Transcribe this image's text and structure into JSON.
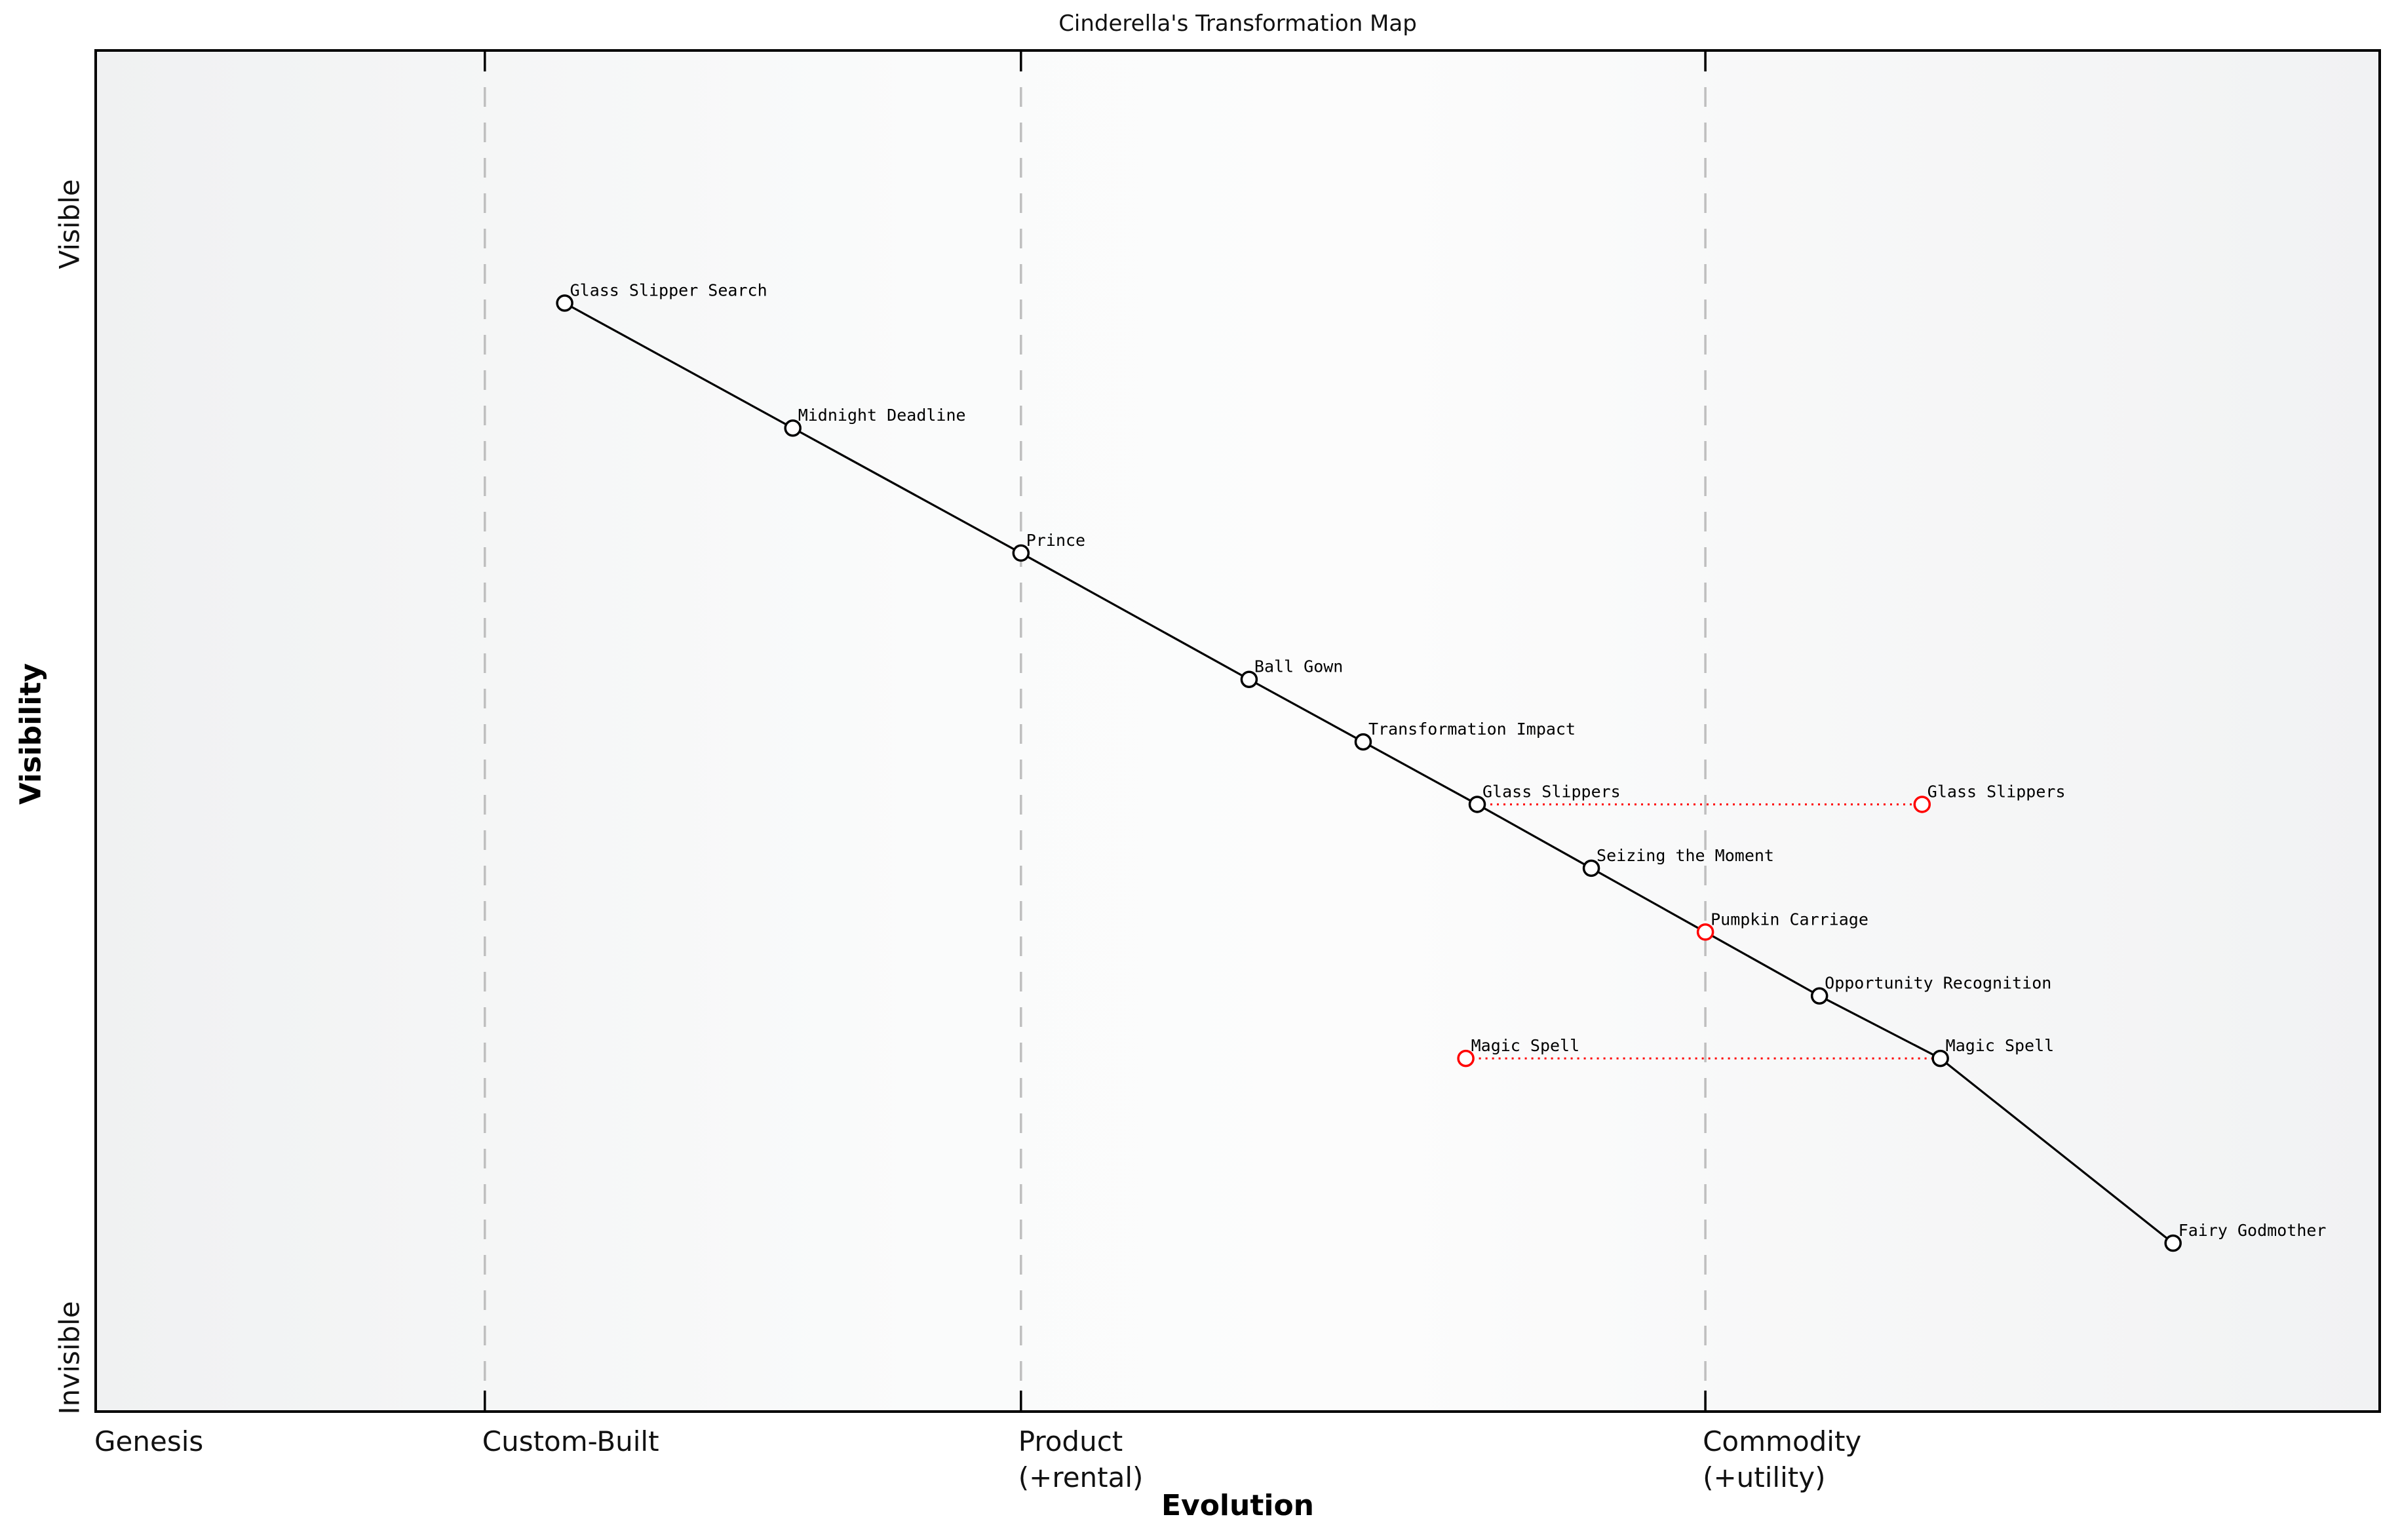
{
  "chart_data": {
    "type": "scatter",
    "subtype": "wardley-map",
    "title": "Cinderella's Transformation Map",
    "xlabel": "Evolution",
    "ylabel": "Visibility",
    "xlim": [
      0,
      1
    ],
    "ylim": [
      0,
      1
    ],
    "grid": "vertical-stage-boundaries-dashed",
    "legend": "none",
    "x_ticks": [
      {
        "label": "Genesis",
        "x": 0.0
      },
      {
        "label": "Custom-Built",
        "x": 0.17
      },
      {
        "label": "Product\n(+rental)",
        "x": 0.405
      },
      {
        "label": "Commodity\n(+utility)",
        "x": 0.705
      }
    ],
    "y_ticks": [
      {
        "label": "Invisible",
        "y": 0.0
      },
      {
        "label": "Visible",
        "y": 1.0
      }
    ],
    "stage_boundaries": [
      0.17,
      0.405,
      0.705
    ],
    "nodes": [
      {
        "id": "glass-slipper-search",
        "label": "Glass Slipper Search",
        "evolution": 0.205,
        "visibility": 0.815,
        "color": "black"
      },
      {
        "id": "midnight-deadline",
        "label": "Midnight Deadline",
        "evolution": 0.305,
        "visibility": 0.723,
        "color": "black"
      },
      {
        "id": "prince",
        "label": "Prince",
        "evolution": 0.405,
        "visibility": 0.631,
        "color": "black"
      },
      {
        "id": "ball-gown",
        "label": "Ball Gown",
        "evolution": 0.505,
        "visibility": 0.538,
        "color": "black"
      },
      {
        "id": "transformation-impact",
        "label": "Transformation Impact",
        "evolution": 0.555,
        "visibility": 0.492,
        "color": "black"
      },
      {
        "id": "glass-slippers",
        "label": "Glass Slippers",
        "evolution": 0.605,
        "visibility": 0.446,
        "color": "black"
      },
      {
        "id": "seizing-the-moment",
        "label": "Seizing the Moment",
        "evolution": 0.655,
        "visibility": 0.399,
        "color": "black"
      },
      {
        "id": "pumpkin-carriage",
        "label": "Pumpkin Carriage",
        "evolution": 0.705,
        "visibility": 0.352,
        "color": "red"
      },
      {
        "id": "opportunity-recognition",
        "label": "Opportunity Recognition",
        "evolution": 0.755,
        "visibility": 0.305,
        "color": "black"
      },
      {
        "id": "magic-spell",
        "label": "Magic Spell",
        "evolution": 0.808,
        "visibility": 0.259,
        "color": "black"
      },
      {
        "id": "fairy-godmother",
        "label": "Fairy Godmother",
        "evolution": 0.91,
        "visibility": 0.123,
        "color": "black"
      },
      {
        "id": "glass-slippers-evolved",
        "label": "Glass Slippers",
        "evolution": 0.8,
        "visibility": 0.446,
        "color": "red"
      },
      {
        "id": "magic-spell-origin",
        "label": "Magic Spell",
        "evolution": 0.6,
        "visibility": 0.259,
        "color": "red"
      }
    ],
    "value_chain": [
      "glass-slipper-search",
      "midnight-deadline",
      "prince",
      "ball-gown",
      "transformation-impact",
      "glass-slippers",
      "seizing-the-moment",
      "pumpkin-carriage",
      "opportunity-recognition",
      "magic-spell",
      "fairy-godmother"
    ],
    "evolve_links": [
      {
        "from": "glass-slippers",
        "to": "glass-slippers-evolved"
      },
      {
        "from": "magic-spell-origin",
        "to": "magic-spell"
      }
    ],
    "colors": {
      "node_stroke": "#000000",
      "node_fill": "#ffffff",
      "evolved_stroke": "#ff0000",
      "chain_line": "#000000",
      "boundary_line": "#bfbfbf",
      "evolve_line": "#ff0000"
    }
  }
}
